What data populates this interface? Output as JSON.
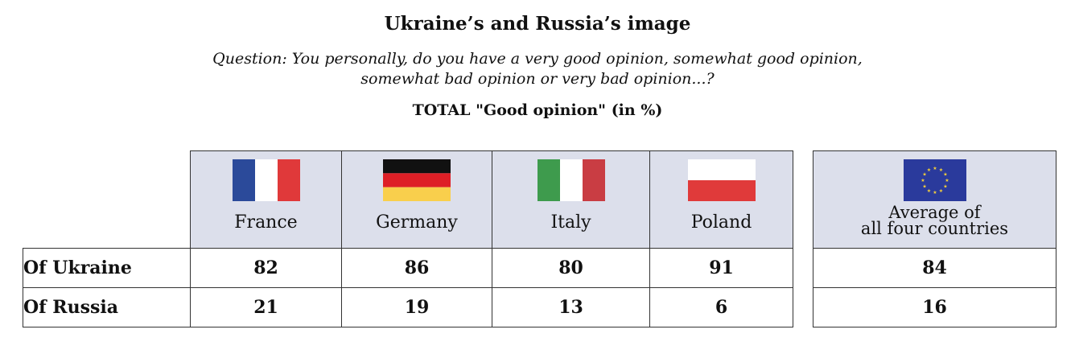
{
  "chart_data": {
    "type": "table",
    "title": "Ukraine’s and Russia’s image",
    "question_line1": "Question: You personally, do you have a very good opinion, somewhat good opinion,",
    "question_line2": "somewhat bad opinion or very bad opinion...?",
    "subtitle": "TOTAL \"Good opinion\" (in %)",
    "columns": [
      {
        "label": "France",
        "flag": "france-flag-icon"
      },
      {
        "label": "Germany",
        "flag": "germany-flag-icon"
      },
      {
        "label": "Italy",
        "flag": "italy-flag-icon"
      },
      {
        "label": "Poland",
        "flag": "poland-flag-icon"
      }
    ],
    "average_column": {
      "label_line1": "Average of",
      "label_line2": "all four countries",
      "flag": "eu-flag-icon"
    },
    "rows": [
      {
        "label": "Of Ukraine",
        "values": [
          "82",
          "86",
          "80",
          "91"
        ],
        "average": "84"
      },
      {
        "label": "Of Russia",
        "values": [
          "21",
          "19",
          "13",
          "6"
        ],
        "average": "16"
      }
    ]
  },
  "colors": {
    "header_bg": "#dcdfeb",
    "france_blue": "#2b4a9a",
    "france_white": "#ffffff",
    "france_red": "#e0393a",
    "germany_black": "#111111",
    "germany_red": "#de1f26",
    "germany_gold": "#f9cf4c",
    "italy_green": "#3e9b4d",
    "italy_white": "#ffffff",
    "italy_red": "#c93d43",
    "poland_white": "#ffffff",
    "poland_red": "#e03a3a",
    "eu_blue": "#2a3a9c",
    "eu_star": "#f5d03a"
  }
}
